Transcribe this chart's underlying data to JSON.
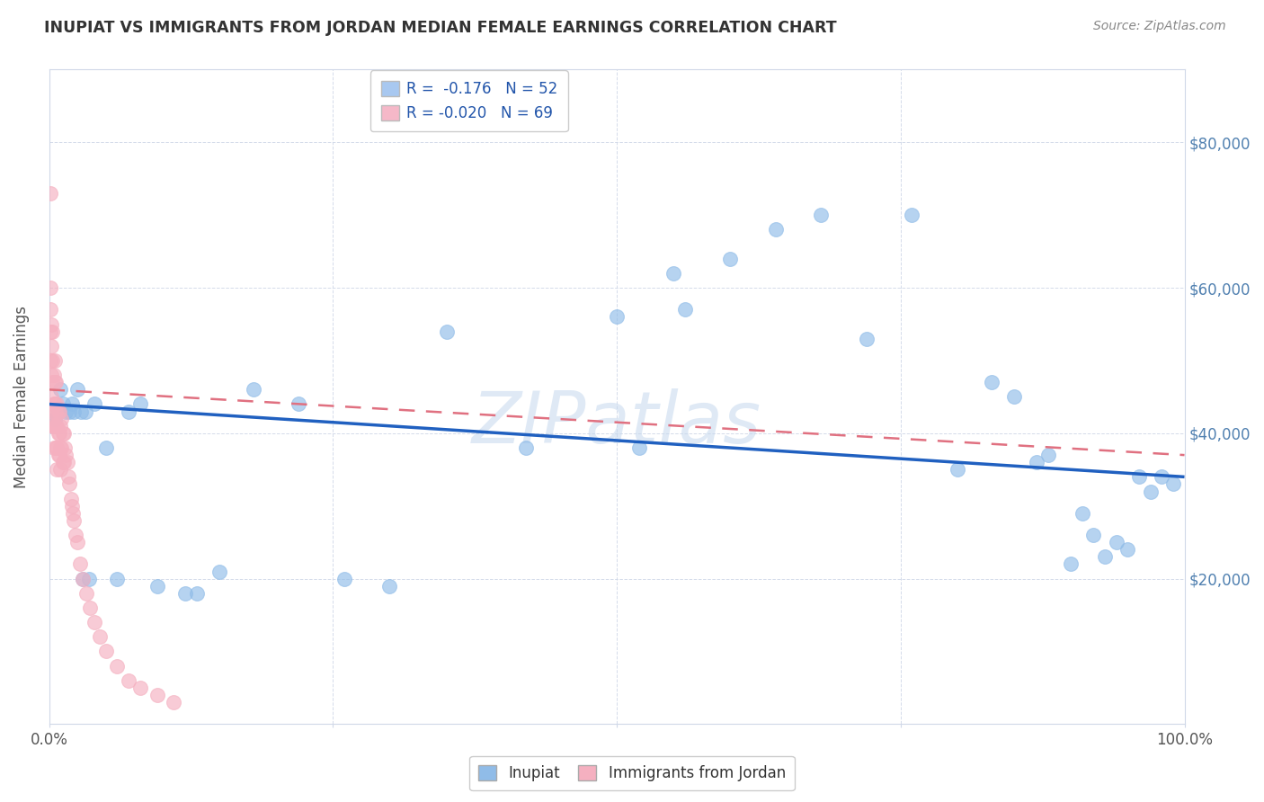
{
  "title": "INUPIAT VS IMMIGRANTS FROM JORDAN MEDIAN FEMALE EARNINGS CORRELATION CHART",
  "source": "Source: ZipAtlas.com",
  "ylabel": "Median Female Earnings",
  "watermark": "ZIPatlas",
  "xlim": [
    0,
    1
  ],
  "ylim": [
    0,
    90000
  ],
  "legend_entries": [
    {
      "label": "R =  -0.176   N = 52",
      "color": "#a8c8f0"
    },
    {
      "label": "R = -0.020   N = 69",
      "color": "#f5b8c8"
    }
  ],
  "inupiat_color": "#90bce8",
  "jordan_color": "#f5b0c0",
  "inupiat_line_color": "#2060c0",
  "jordan_line_color": "#e07080",
  "background_color": "#ffffff",
  "grid_color": "#d0d8e8",
  "title_color": "#333333",
  "source_color": "#888888",
  "right_ylabel_color": "#5080b0",
  "inupiat_x": [
    0.005,
    0.008,
    0.01,
    0.012,
    0.015,
    0.018,
    0.02,
    0.022,
    0.025,
    0.028,
    0.03,
    0.032,
    0.035,
    0.04,
    0.05,
    0.06,
    0.07,
    0.08,
    0.095,
    0.12,
    0.13,
    0.15,
    0.18,
    0.22,
    0.26,
    0.3,
    0.35,
    0.42,
    0.5,
    0.52,
    0.55,
    0.56,
    0.6,
    0.64,
    0.68,
    0.72,
    0.76,
    0.8,
    0.83,
    0.85,
    0.87,
    0.88,
    0.9,
    0.91,
    0.92,
    0.93,
    0.94,
    0.95,
    0.96,
    0.97,
    0.98,
    0.99
  ],
  "inupiat_y": [
    42000,
    43000,
    46000,
    44000,
    43000,
    43000,
    44000,
    43000,
    46000,
    43000,
    20000,
    43000,
    20000,
    44000,
    38000,
    20000,
    43000,
    44000,
    19000,
    18000,
    18000,
    21000,
    46000,
    44000,
    20000,
    19000,
    54000,
    38000,
    56000,
    38000,
    62000,
    57000,
    64000,
    68000,
    70000,
    53000,
    70000,
    35000,
    47000,
    45000,
    36000,
    37000,
    22000,
    29000,
    26000,
    23000,
    25000,
    24000,
    34000,
    32000,
    34000,
    33000
  ],
  "jordan_x": [
    0.001,
    0.001,
    0.001,
    0.001,
    0.001,
    0.002,
    0.002,
    0.002,
    0.002,
    0.002,
    0.003,
    0.003,
    0.003,
    0.003,
    0.003,
    0.004,
    0.004,
    0.004,
    0.004,
    0.005,
    0.005,
    0.005,
    0.005,
    0.006,
    0.006,
    0.006,
    0.006,
    0.007,
    0.007,
    0.007,
    0.007,
    0.008,
    0.008,
    0.008,
    0.009,
    0.009,
    0.009,
    0.01,
    0.01,
    0.01,
    0.011,
    0.011,
    0.012,
    0.012,
    0.013,
    0.013,
    0.014,
    0.015,
    0.016,
    0.017,
    0.018,
    0.019,
    0.02,
    0.021,
    0.022,
    0.023,
    0.025,
    0.027,
    0.03,
    0.033,
    0.036,
    0.04,
    0.045,
    0.05,
    0.06,
    0.07,
    0.08,
    0.095,
    0.11
  ],
  "jordan_y": [
    73000,
    60000,
    57000,
    54000,
    50000,
    55000,
    52000,
    48000,
    45000,
    43000,
    54000,
    50000,
    47000,
    43000,
    41000,
    48000,
    44000,
    41000,
    38000,
    50000,
    47000,
    44000,
    41000,
    47000,
    43000,
    41000,
    38000,
    44000,
    41000,
    38000,
    35000,
    43000,
    40000,
    37000,
    43000,
    40000,
    37000,
    41000,
    38000,
    35000,
    42000,
    38000,
    40000,
    36000,
    40000,
    36000,
    38000,
    37000,
    36000,
    34000,
    33000,
    31000,
    30000,
    29000,
    28000,
    26000,
    25000,
    22000,
    20000,
    18000,
    16000,
    14000,
    12000,
    10000,
    8000,
    6000,
    5000,
    4000,
    3000
  ],
  "inupiat_trend_x0": 0.0,
  "inupiat_trend_x1": 1.0,
  "inupiat_trend_y0": 44000,
  "inupiat_trend_y1": 34000,
  "jordan_trend_x0": 0.0,
  "jordan_trend_x1": 1.0,
  "jordan_trend_y0": 46000,
  "jordan_trend_y1": 37000
}
